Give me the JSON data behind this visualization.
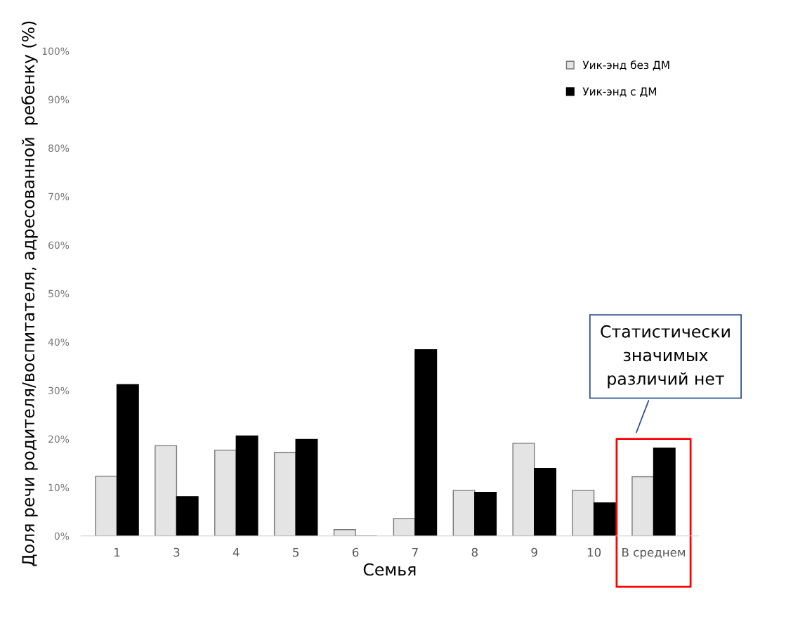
{
  "chart_data": {
    "type": "bar",
    "xlabel": "Семья",
    "ylabel": "Доля речи родителя/воспитателя, адресованной  ребенку (%)",
    "categories": [
      "1",
      "3",
      "4",
      "5",
      "6",
      "7",
      "8",
      "9",
      "10",
      "В среднем"
    ],
    "series": [
      {
        "name": "Уик-энд без ДМ",
        "color": "#e4e4e4",
        "values": [
          12.3,
          18.6,
          17.7,
          17.2,
          1.3,
          3.6,
          9.4,
          19.1,
          9.4,
          12.2
        ]
      },
      {
        "name": "Уик-энд с ДМ",
        "color": "#000000",
        "values": [
          31.2,
          8.1,
          20.6,
          19.9,
          0,
          38.4,
          9.0,
          13.9,
          6.8,
          18.1
        ]
      }
    ],
    "ylim": [
      0,
      100
    ],
    "yticks": [
      {
        "value": 0,
        "label": "0%"
      },
      {
        "value": 10,
        "label": "10%"
      },
      {
        "value": 20,
        "label": "20%"
      },
      {
        "value": 30,
        "label": "30%"
      },
      {
        "value": 40,
        "label": "40%"
      },
      {
        "value": 50,
        "label": "50%"
      },
      {
        "value": 60,
        "label": "60%"
      },
      {
        "value": 70,
        "label": "70%"
      },
      {
        "value": 80,
        "label": "80%"
      },
      {
        "value": 90,
        "label": "90%"
      },
      {
        "value": 100,
        "label": "100%"
      }
    ],
    "grid": false,
    "legend": "top right",
    "annotations": [
      "Статистически\nзначимых\nразличий нет"
    ]
  }
}
